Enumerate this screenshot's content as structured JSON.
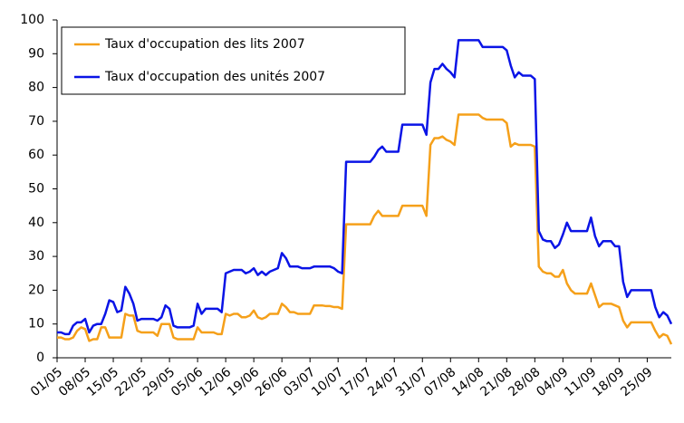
{
  "chart_data": {
    "type": "line",
    "categories": [
      "01/05",
      null,
      null,
      null,
      null,
      null,
      null,
      "08/05",
      null,
      null,
      null,
      null,
      null,
      null,
      "15/05",
      null,
      null,
      null,
      null,
      null,
      null,
      "22/05",
      null,
      null,
      null,
      null,
      null,
      null,
      "29/05",
      null,
      null,
      null,
      null,
      null,
      null,
      "05/06",
      null,
      null,
      null,
      null,
      null,
      null,
      "12/06",
      null,
      null,
      null,
      null,
      null,
      null,
      "19/06",
      null,
      null,
      null,
      null,
      null,
      null,
      "26/06",
      null,
      null,
      null,
      null,
      null,
      null,
      "03/07",
      null,
      null,
      null,
      null,
      null,
      null,
      "10/07",
      null,
      null,
      null,
      null,
      null,
      null,
      "17/07",
      null,
      null,
      null,
      null,
      null,
      null,
      "24/07",
      null,
      null,
      null,
      null,
      null,
      null,
      "31/07",
      null,
      null,
      null,
      null,
      null,
      null,
      "07/08",
      null,
      null,
      null,
      null,
      null,
      null,
      "14/08",
      null,
      null,
      null,
      null,
      null,
      null,
      "21/08",
      null,
      null,
      null,
      null,
      null,
      null,
      "28/08",
      null,
      null,
      null,
      null,
      null,
      null,
      "04/09",
      null,
      null,
      null,
      null,
      null,
      null,
      "11/09",
      null,
      null,
      null,
      null,
      null,
      null,
      "18/09",
      null,
      null,
      null,
      null,
      null,
      null,
      "25/09",
      null,
      null,
      null,
      null,
      null,
      null
    ],
    "series": [
      {
        "name": "Taux d'occupation des lits 2007",
        "color": "#f5a01a",
        "values": [
          6,
          6,
          5.5,
          5.5,
          6,
          8,
          9,
          8.5,
          5,
          5.5,
          5.5,
          9,
          9,
          6,
          6,
          6,
          6,
          13,
          12.5,
          12.5,
          8,
          7.5,
          7.5,
          7.5,
          7.5,
          6.5,
          10,
          10,
          10,
          6,
          5.5,
          5.5,
          5.5,
          5.5,
          5.5,
          9,
          7.5,
          7.5,
          7.5,
          7.5,
          7,
          7,
          13,
          12.5,
          13,
          13,
          12,
          12,
          12.5,
          14,
          12,
          11.5,
          12,
          13,
          13,
          13,
          16,
          15,
          13.5,
          13.5,
          13,
          13,
          13,
          13,
          15.5,
          15.5,
          15.5,
          15.3,
          15.3,
          15,
          15,
          14.5,
          39.5,
          39.5,
          39.5,
          39.5,
          39.5,
          39.5,
          39.5,
          42,
          43.5,
          42,
          42,
          42,
          42,
          42,
          45,
          45,
          45,
          45,
          45,
          45,
          42,
          63,
          65,
          65,
          65.5,
          64.5,
          64,
          63,
          72,
          72,
          72,
          72,
          72,
          72,
          71,
          70.5,
          70.5,
          70.5,
          70.5,
          70.5,
          69.5,
          62.5,
          63.5,
          63,
          63,
          63,
          63,
          62.5,
          27,
          25.5,
          25,
          25,
          24,
          24,
          26,
          22,
          20,
          19,
          19,
          19,
          19,
          22,
          18.5,
          15,
          16,
          16,
          16,
          15.5,
          15,
          11,
          9,
          10.5,
          10.5,
          10.5,
          10.5,
          10.5,
          10.5,
          8,
          6,
          7,
          6.5,
          4
        ]
      },
      {
        "name": "Taux d'occupation des unités 2007",
        "color": "#0a14e6",
        "values": [
          7.5,
          7.5,
          7,
          7,
          9.5,
          10.5,
          10.5,
          11.5,
          7.5,
          9.5,
          10,
          10,
          13,
          17,
          16.5,
          13.5,
          14,
          21,
          19,
          16,
          11,
          11.5,
          11.5,
          11.5,
          11.5,
          11,
          12,
          15.5,
          14.5,
          9.5,
          9,
          9,
          9,
          9,
          9.5,
          16,
          13,
          14.5,
          14.5,
          14.5,
          14.5,
          13.5,
          25,
          25.5,
          26,
          26,
          26,
          25,
          25.5,
          26.5,
          24.5,
          25.5,
          24.5,
          25.5,
          26,
          26.5,
          31,
          29.5,
          27,
          27,
          27,
          26.5,
          26.5,
          26.5,
          27,
          27,
          27,
          27,
          27,
          26.5,
          25.5,
          25,
          58,
          58,
          58,
          58,
          58,
          58,
          58,
          59.5,
          61.5,
          62.5,
          61,
          61,
          61,
          61,
          69,
          69,
          69,
          69,
          69,
          69,
          66,
          81.5,
          85.5,
          85.5,
          87,
          85.5,
          84.5,
          83,
          94,
          94,
          94,
          94,
          94,
          94,
          92,
          92,
          92,
          92,
          92,
          92,
          91,
          86.5,
          83,
          84.5,
          83.5,
          83.5,
          83.5,
          82.5,
          37.5,
          35,
          34.5,
          34.5,
          32.5,
          33.5,
          36.5,
          40,
          37.5,
          37.5,
          37.5,
          37.5,
          37.5,
          41.5,
          36,
          33,
          34.5,
          34.5,
          34.5,
          33,
          33,
          22.5,
          18,
          20,
          20,
          20,
          20,
          20,
          20,
          15,
          12,
          13.5,
          12.5,
          10
        ]
      }
    ],
    "ylim": [
      0,
      100
    ],
    "yticks": [
      0,
      10,
      20,
      30,
      40,
      50,
      60,
      70,
      80,
      90,
      100
    ],
    "legend": "top-left"
  }
}
